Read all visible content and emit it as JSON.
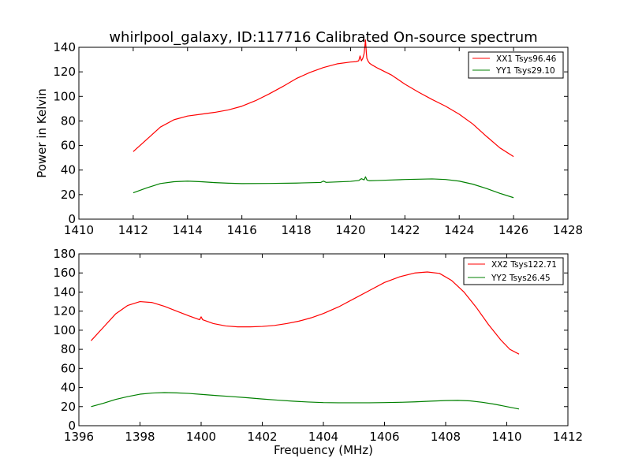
{
  "chart_data": [
    {
      "type": "line",
      "title": "whirlpool_galaxy, ID:117716 Calibrated On-source spectrum",
      "xlabel": "",
      "ylabel": "Power in Kelvin",
      "xlim": [
        1410,
        1428
      ],
      "ylim": [
        0,
        140
      ],
      "xticks": [
        "1410",
        "1412",
        "1414",
        "1416",
        "1418",
        "1420",
        "1422",
        "1424",
        "1426",
        "1428"
      ],
      "yticks": [
        "0",
        "20",
        "40",
        "60",
        "80",
        "100",
        "120",
        "140"
      ],
      "legend_position": "top-right",
      "series": [
        {
          "name": "XX1 Tsys96.46",
          "color": "#ff0000",
          "x": [
            1412,
            1412.5,
            1413,
            1413.5,
            1414,
            1414.5,
            1415,
            1415.5,
            1416,
            1416.5,
            1417,
            1417.5,
            1418,
            1418.5,
            1419,
            1419.5,
            1420,
            1420.2,
            1420.3,
            1420.35,
            1420.4,
            1420.45,
            1420.5,
            1420.55,
            1420.58,
            1420.6,
            1420.65,
            1420.7,
            1420.8,
            1421,
            1421.5,
            1422,
            1422.5,
            1423,
            1423.5,
            1424,
            1424.5,
            1425,
            1425.5,
            1426
          ],
          "y": [
            55,
            65,
            75,
            81,
            84,
            85.5,
            87,
            89,
            92,
            96.5,
            102,
            108,
            114.5,
            119.5,
            123.5,
            126.5,
            128,
            128.3,
            129,
            133,
            129,
            131,
            135,
            146,
            136,
            131,
            128.5,
            127,
            125.5,
            123,
            117.5,
            110,
            103.5,
            97.5,
            92,
            85.5,
            77.5,
            67.5,
            58,
            51
          ]
        },
        {
          "name": "YY1 Tsys29.10",
          "color": "#008000",
          "x": [
            1412,
            1412.5,
            1413,
            1413.5,
            1414,
            1414.5,
            1415,
            1415.5,
            1416,
            1417,
            1418,
            1418.9,
            1419,
            1419.1,
            1420,
            1420.3,
            1420.4,
            1420.5,
            1420.55,
            1420.6,
            1420.65,
            1420.7,
            1421,
            1422,
            1423,
            1423.5,
            1424,
            1424.5,
            1425,
            1425.5,
            1426
          ],
          "y": [
            21.5,
            25.5,
            29,
            30.5,
            31,
            30.5,
            29.8,
            29.3,
            29,
            29.1,
            29.4,
            29.9,
            31,
            30,
            30.8,
            31.5,
            33,
            32,
            34.5,
            32,
            31.5,
            31.3,
            31.5,
            32.3,
            32.8,
            32.3,
            31,
            28.5,
            25,
            21,
            17.5
          ]
        }
      ]
    },
    {
      "type": "line",
      "title": "",
      "xlabel": "Frequency (MHz)",
      "ylabel": "",
      "xlim": [
        1396,
        1412
      ],
      "ylim": [
        0,
        180
      ],
      "xticks": [
        "1396",
        "1398",
        "1400",
        "1402",
        "1404",
        "1406",
        "1408",
        "1410",
        "1412"
      ],
      "yticks": [
        "0",
        "20",
        "40",
        "60",
        "80",
        "100",
        "120",
        "140",
        "160",
        "180"
      ],
      "legend_position": "top-right",
      "series": [
        {
          "name": "XX2 Tsys122.71",
          "color": "#ff0000",
          "x": [
            1396.4,
            1396.8,
            1397.2,
            1397.6,
            1398,
            1398.4,
            1398.8,
            1399.2,
            1399.6,
            1399.95,
            1400,
            1400.05,
            1400.4,
            1400.8,
            1401.2,
            1401.6,
            1402,
            1402.4,
            1402.8,
            1403.2,
            1403.6,
            1404,
            1404.5,
            1405,
            1405.5,
            1406,
            1406.5,
            1407,
            1407.4,
            1407.8,
            1408.2,
            1408.6,
            1409,
            1409.4,
            1409.8,
            1410.1,
            1410.4
          ],
          "y": [
            89,
            103,
            117,
            126,
            130,
            129,
            125,
            120,
            115,
            111,
            114,
            111,
            107,
            104.5,
            103.5,
            103.5,
            104,
            105,
            107,
            109.5,
            113,
            117.5,
            124.5,
            133,
            141.5,
            150,
            156,
            160,
            161,
            159.5,
            152,
            140,
            124,
            106,
            90,
            80,
            75
          ]
        },
        {
          "name": "YY2 Tsys26.45",
          "color": "#008000",
          "x": [
            1396.4,
            1396.8,
            1397.2,
            1397.6,
            1398,
            1398.4,
            1398.8,
            1399.2,
            1399.6,
            1400,
            1400.5,
            1401,
            1401.5,
            1402,
            1402.5,
            1403,
            1403.5,
            1404,
            1404.5,
            1405,
            1405.5,
            1406,
            1406.5,
            1407,
            1407.5,
            1408,
            1408.4,
            1408.8,
            1409.2,
            1409.6,
            1410,
            1410.4
          ],
          "y": [
            20,
            23.5,
            27.5,
            30.5,
            33,
            34.2,
            34.7,
            34.4,
            33.8,
            32.8,
            31.6,
            30.5,
            29.3,
            28,
            26.8,
            25.7,
            24.8,
            24.2,
            24,
            24,
            24,
            24.2,
            24.5,
            25,
            25.7,
            26.3,
            26.5,
            26,
            24.5,
            22.5,
            20,
            17.5
          ]
        }
      ]
    }
  ]
}
